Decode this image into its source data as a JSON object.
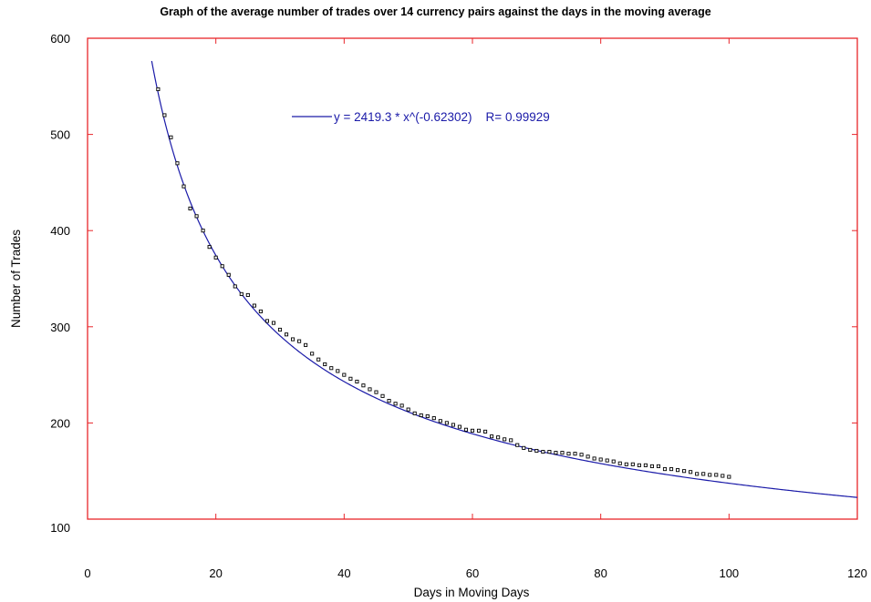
{
  "chart_data": {
    "type": "scatter",
    "title": "Graph of the average number of trades over 14 currency pairs against the days in the moving average",
    "xlabel": "Days in Moving Days",
    "ylabel": "Number of Trades",
    "xlim": [
      0,
      120
    ],
    "ylim": [
      100,
      600
    ],
    "x_ticks": [
      "0",
      "20",
      "40",
      "60",
      "80",
      "100",
      "120"
    ],
    "y_ticks": [
      "100",
      "200",
      "300",
      "400",
      "500",
      "600"
    ],
    "grid": false,
    "legend": {
      "placement": "top-center",
      "text": "y = 2419.3 * x^(-0.62302)    R= 0.99929"
    },
    "colors": {
      "frame": "#e8262a",
      "fit_line": "#1a1aa8",
      "points": "#000000"
    },
    "fit": {
      "type": "power",
      "a": 2419.3,
      "b": -0.62302,
      "x_range": [
        10,
        120
      ]
    },
    "series": [
      {
        "x": [
          11,
          12,
          13,
          14,
          15,
          16,
          17,
          18,
          19,
          20,
          21,
          22,
          23,
          24,
          25,
          26,
          27,
          28,
          29,
          30,
          31,
          32,
          33,
          34,
          35,
          36,
          37,
          38,
          39,
          40,
          41,
          42,
          43,
          44,
          45,
          46,
          47,
          48,
          49,
          50,
          51,
          52,
          53,
          54,
          55,
          56,
          57,
          58,
          59,
          60,
          61,
          62,
          63,
          64,
          65,
          66,
          67,
          68,
          69,
          70,
          71,
          72,
          73,
          74,
          75,
          76,
          77,
          78,
          79,
          80,
          81,
          82,
          83,
          84,
          85,
          86,
          87,
          88,
          89,
          90,
          91,
          92,
          93,
          94,
          95,
          96,
          97,
          98,
          99,
          100
        ],
        "y": [
          547,
          520,
          497,
          470,
          446,
          423,
          415,
          400,
          383,
          372,
          363,
          354,
          342,
          334,
          333,
          322,
          316,
          306,
          304,
          297,
          292,
          287,
          285,
          281,
          272,
          266,
          261,
          257,
          254,
          250,
          246,
          243,
          239,
          235,
          232,
          228,
          223,
          220,
          218,
          214,
          210,
          208,
          207,
          205,
          202,
          200,
          198,
          196,
          193,
          192,
          192,
          191,
          186,
          185,
          183,
          182,
          177,
          174,
          172,
          171,
          170,
          170,
          169,
          169,
          168,
          168,
          167,
          165,
          163,
          162,
          161,
          160,
          158,
          157,
          157,
          156,
          156,
          155,
          155,
          152,
          152,
          151,
          150,
          149,
          147,
          147,
          146,
          146,
          145,
          144
        ]
      }
    ]
  }
}
